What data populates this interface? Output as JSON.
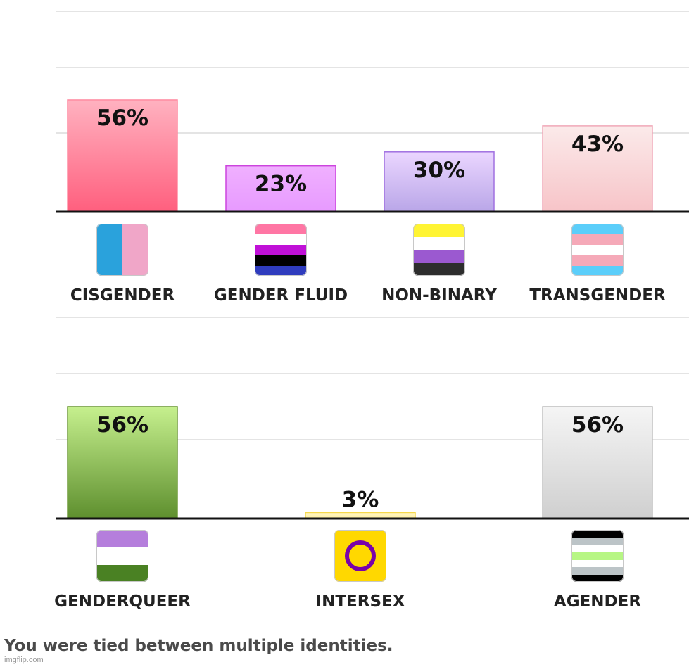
{
  "chart_data": [
    {
      "type": "bar",
      "categories": [
        "CISGENDER",
        "GENDER FLUID",
        "NON-BINARY",
        "TRANSGENDER"
      ],
      "values": [
        56,
        23,
        30,
        43
      ],
      "labels": [
        "56%",
        "23%",
        "30%",
        "43%"
      ],
      "flag_icons": [
        "cisgender-flag-icon",
        "genderfluid-flag-icon",
        "nonbinary-flag-icon",
        "transgender-flag-icon"
      ],
      "bar_colors": [
        [
          "#ffb2c0",
          "#ff5f7e"
        ],
        [
          "#f0b0ff",
          "#e79aff"
        ],
        [
          "#ebd6ff",
          "#b9a6e8"
        ],
        [
          "#fbeaea",
          "#f7c4c8"
        ]
      ],
      "bar_borders": [
        "#ff8aa0",
        "#cc44dd",
        "#a070e0",
        "#f0a8b8"
      ],
      "ylim": [
        0,
        100
      ],
      "grid": true
    },
    {
      "type": "bar",
      "categories": [
        "GENDERQUEER",
        "INTERSEX",
        "AGENDER"
      ],
      "values": [
        56,
        3,
        56
      ],
      "labels": [
        "56%",
        "3%",
        "56%"
      ],
      "flag_icons": [
        "genderqueer-flag-icon",
        "intersex-flag-icon",
        "agender-flag-icon"
      ],
      "bar_colors": [
        [
          "#c6f08e",
          "#5e8f2e"
        ],
        [
          "#fff6c8",
          "#fff0a0"
        ],
        [
          "#f5f5f5",
          "#cfcfcf"
        ]
      ],
      "bar_borders": [
        "#6e9a38",
        "#f5d84a",
        "#c0c0c0"
      ],
      "ylim": [
        0,
        100
      ],
      "grid": true
    }
  ],
  "caption": "You were tied between multiple identities.",
  "watermark": "imgflip.com"
}
